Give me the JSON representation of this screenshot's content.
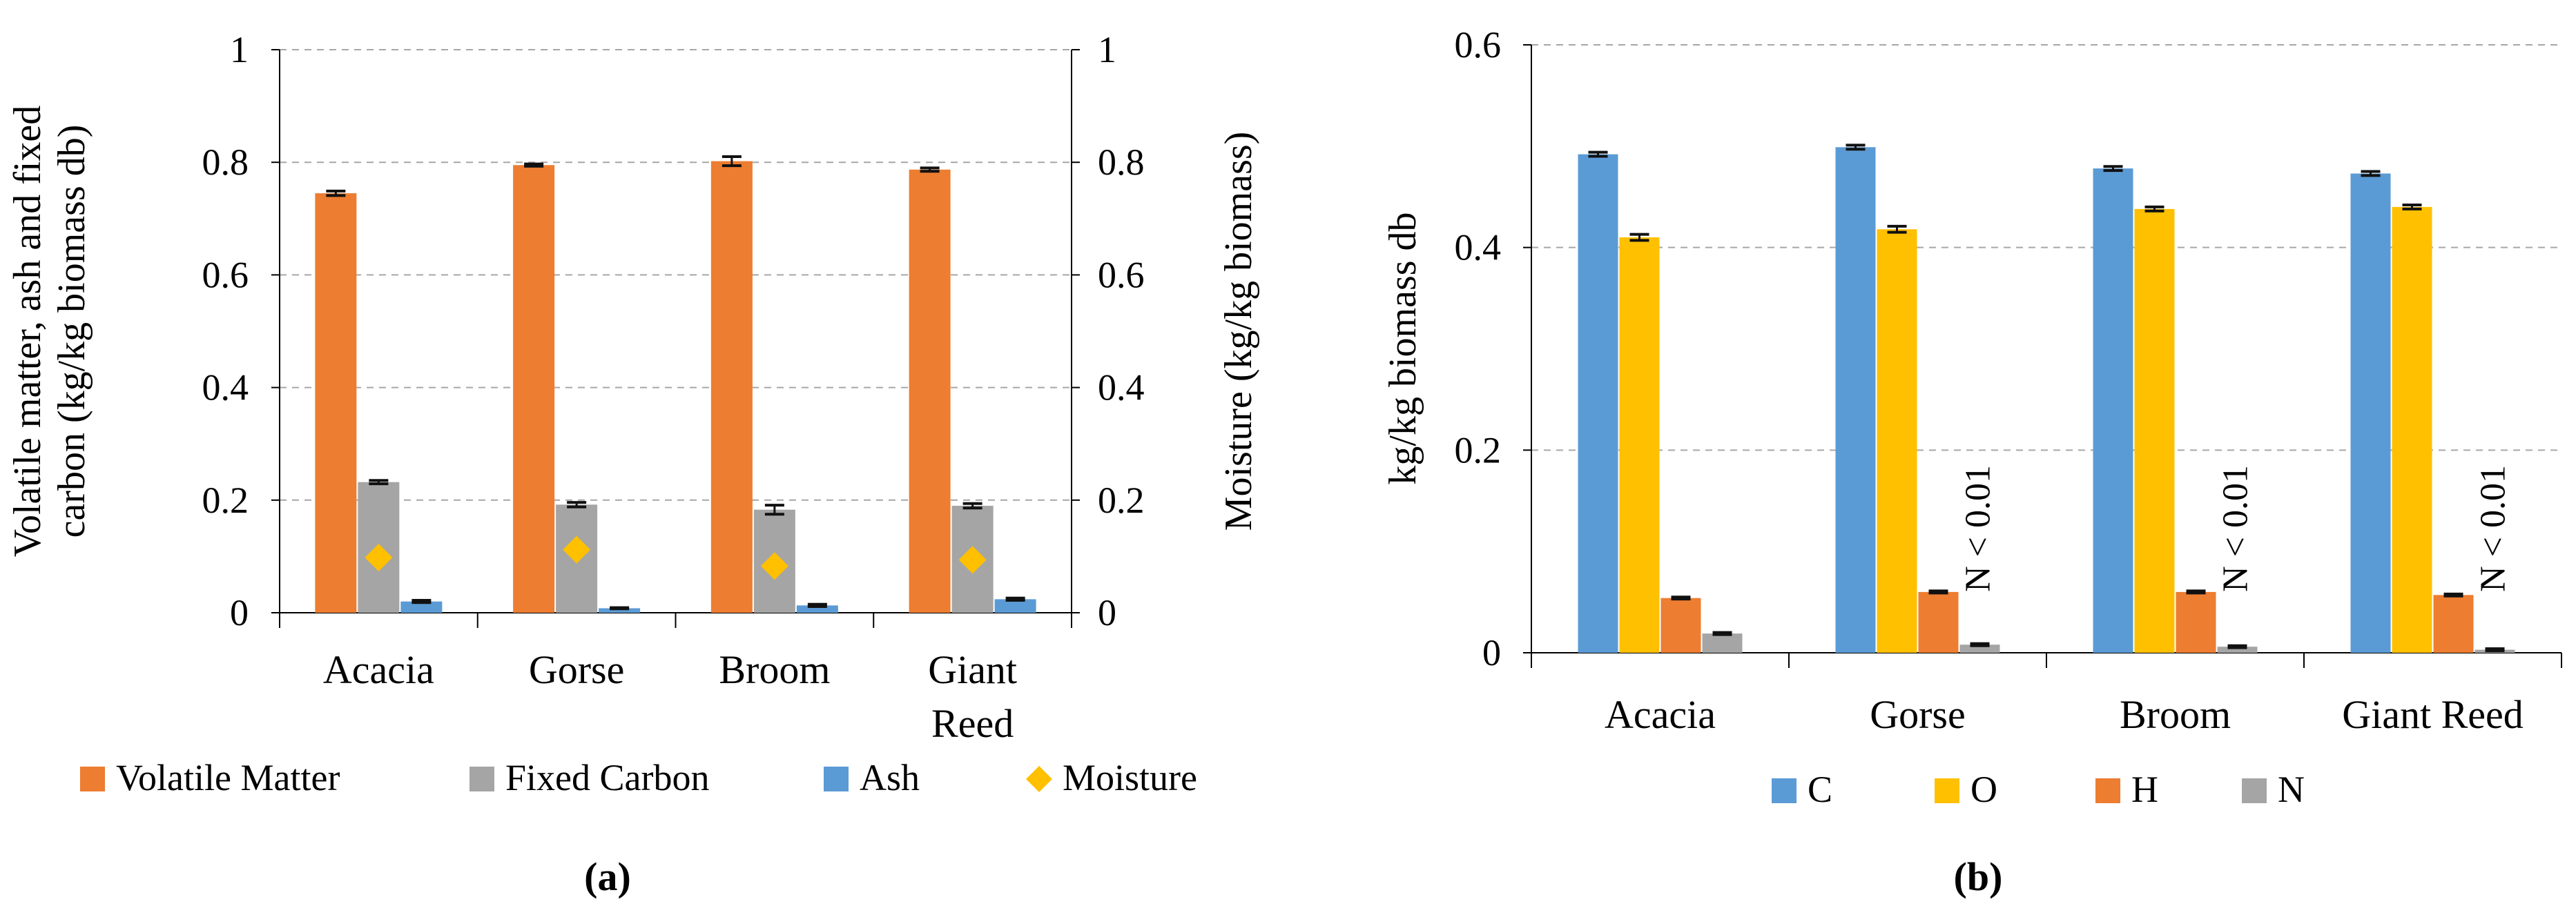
{
  "chart_data": [
    {
      "id": "a",
      "panel_label": "(a)",
      "type": "bar",
      "title": "",
      "categories": [
        "Acacia",
        "Gorse",
        "Broom",
        "Giant Reed"
      ],
      "category_lines": [
        [
          "Acacia"
        ],
        [
          "Gorse"
        ],
        [
          "Broom"
        ],
        [
          "Giant",
          "Reed"
        ]
      ],
      "ylabel_lines": [
        "Volatile matter, ash and fixed",
        "carbon (kg/kg biomass db)"
      ],
      "y2label": "Moisture (kg/kg biomass)",
      "ylim": [
        0,
        1
      ],
      "y2lim": [
        0,
        1
      ],
      "yticks": [
        0,
        0.2,
        0.4,
        0.6,
        0.8,
        1
      ],
      "ytick_labels": [
        "0",
        "0.2",
        "0.4",
        "0.6",
        "0.8",
        "1"
      ],
      "y2tick_labels": [
        "0",
        "0.2",
        "0.4",
        "0.6",
        "0.8",
        "1"
      ],
      "grid": true,
      "legend_position": "bottom",
      "series": [
        {
          "name": "Volatile Matter",
          "kind": "bar",
          "color": "#ED7D31",
          "values": [
            0.745,
            0.795,
            0.802,
            0.787
          ],
          "errors": [
            0.004,
            0.002,
            0.008,
            0.003
          ]
        },
        {
          "name": "Fixed Carbon",
          "kind": "bar",
          "color": "#A5A5A5",
          "values": [
            0.232,
            0.192,
            0.183,
            0.19
          ],
          "errors": [
            0.003,
            0.004,
            0.008,
            0.004
          ]
        },
        {
          "name": "Ash",
          "kind": "bar",
          "color": "#5B9BD5",
          "values": [
            0.02,
            0.008,
            0.013,
            0.024
          ],
          "errors": [
            0.002,
            0.001,
            0.002,
            0.002
          ]
        },
        {
          "name": "Moisture",
          "kind": "marker",
          "axis": "right",
          "color": "#FFC000",
          "values": [
            0.098,
            0.112,
            0.083,
            0.094
          ]
        }
      ]
    },
    {
      "id": "b",
      "panel_label": "(b)",
      "type": "bar",
      "title": "",
      "categories": [
        "Acacia",
        "Gorse",
        "Broom",
        "Giant Reed"
      ],
      "category_lines": [
        [
          "Acacia"
        ],
        [
          "Gorse"
        ],
        [
          "Broom"
        ],
        [
          "Giant Reed"
        ]
      ],
      "ylabel_lines": [
        "kg/kg biomass db"
      ],
      "ylim": [
        0,
        0.6
      ],
      "yticks": [
        0,
        0.2,
        0.4,
        0.6
      ],
      "ytick_labels": [
        "0",
        "0.2",
        "0.4",
        "0.6"
      ],
      "grid": true,
      "legend_position": "bottom",
      "series": [
        {
          "name": "C",
          "kind": "bar",
          "color": "#5B9BD5",
          "values": [
            0.492,
            0.499,
            0.478,
            0.473
          ],
          "errors": [
            0.002,
            0.002,
            0.002,
            0.002
          ]
        },
        {
          "name": "O",
          "kind": "bar",
          "color": "#FFC000",
          "values": [
            0.41,
            0.418,
            0.438,
            0.44
          ],
          "errors": [
            0.003,
            0.003,
            0.002,
            0.002
          ]
        },
        {
          "name": "H",
          "kind": "bar",
          "color": "#ED7D31",
          "values": [
            0.054,
            0.06,
            0.06,
            0.057
          ],
          "errors": [
            0.001,
            0.001,
            0.001,
            0.001
          ]
        },
        {
          "name": "N",
          "kind": "bar",
          "color": "#A5A5A5",
          "values": [
            0.019,
            0.008,
            0.006,
            0.003
          ],
          "errors": [
            0.001,
            0.001,
            0.001,
            0.001
          ]
        }
      ],
      "annotations": [
        {
          "text": "N < 0.01",
          "category": "Gorse"
        },
        {
          "text": "N < 0.01",
          "category": "Broom"
        },
        {
          "text": "N < 0.01",
          "category": "Giant Reed"
        }
      ]
    }
  ]
}
